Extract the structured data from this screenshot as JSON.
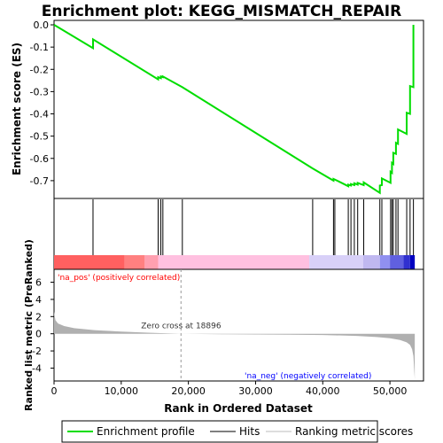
{
  "chart_data": {
    "type": "line",
    "title": "Enrichment plot: KEGG_MISMATCH_REPAIR",
    "es_panel": {
      "ylabel": "Enrichment score (ES)",
      "ylim": [
        -0.78,
        0.02
      ],
      "yticks": [
        "0.0",
        "-0.1",
        "-0.2",
        "-0.3",
        "-0.4",
        "-0.5",
        "-0.6",
        "-0.7"
      ],
      "ytick_values": [
        0.0,
        -0.1,
        -0.2,
        -0.3,
        -0.4,
        -0.5,
        -0.6,
        -0.7
      ],
      "series": [
        {
          "name": "Enrichment profile",
          "color": "#00dd00",
          "x": [
            0,
            5800,
            5800,
            15500,
            15500,
            15900,
            15900,
            16200,
            16200,
            19100,
            19100,
            38500,
            38500,
            41600,
            41600,
            41800,
            41800,
            43800,
            43800,
            44200,
            44200,
            44700,
            44700,
            45200,
            45200,
            46100,
            46100,
            48500,
            48500,
            48800,
            48800,
            50100,
            50100,
            50300,
            50300,
            50500,
            50500,
            50900,
            50900,
            51200,
            51200,
            52500,
            52500,
            53000,
            53000,
            53500,
            53500
          ],
          "y": [
            0.0,
            -0.105,
            -0.065,
            -0.245,
            -0.235,
            -0.24,
            -0.232,
            -0.235,
            -0.232,
            -0.28,
            -0.28,
            -0.645,
            -0.645,
            -0.7,
            -0.692,
            -0.695,
            -0.695,
            -0.725,
            -0.718,
            -0.722,
            -0.715,
            -0.72,
            -0.712,
            -0.718,
            -0.71,
            -0.72,
            -0.708,
            -0.755,
            -0.722,
            -0.72,
            -0.69,
            -0.71,
            -0.66,
            -0.665,
            -0.62,
            -0.625,
            -0.575,
            -0.58,
            -0.53,
            -0.535,
            -0.47,
            -0.49,
            -0.395,
            -0.4,
            -0.275,
            -0.28,
            0.0
          ]
        }
      ]
    },
    "hits_panel": {
      "hit_positions": [
        5800,
        15500,
        15900,
        16200,
        19100,
        38500,
        41600,
        41800,
        43800,
        44200,
        44700,
        45200,
        46100,
        48500,
        48800,
        50100,
        50300,
        50500,
        50900,
        51200,
        52500,
        53000,
        53500
      ]
    },
    "metric_panel": {
      "ylabel": "Ranked list metric (PreRanked)",
      "ylim": [
        -5.5,
        7.5
      ],
      "yticks": [
        "6",
        "4",
        "2",
        "0",
        "-2",
        "-4"
      ],
      "ytick_values": [
        6,
        4,
        2,
        0,
        -2,
        -4
      ],
      "zero_cross_label": "Zero cross at 18896",
      "zero_cross": 18896,
      "pos_label": "'na_pos' (positively correlated)",
      "neg_label": "'na_neg' (negatively correlated)",
      "curve_x": [
        0,
        200,
        600,
        1500,
        3000,
        6000,
        10000,
        14000,
        18896,
        25000,
        35000,
        40000,
        45000,
        48000,
        50000,
        51500,
        52500,
        53000,
        53300,
        53500,
        53700
      ],
      "curve_y": [
        2.6,
        1.6,
        1.2,
        0.9,
        0.65,
        0.42,
        0.25,
        0.12,
        0.0,
        -0.05,
        -0.1,
        -0.15,
        -0.25,
        -0.38,
        -0.52,
        -0.72,
        -1.0,
        -1.3,
        -1.8,
        -2.6,
        -5.3
      ]
    },
    "x_axis": {
      "xlabel": "Rank in Ordered Dataset",
      "xlim": [
        0,
        55000
      ],
      "xticks": [
        "0",
        "10,000",
        "20,000",
        "30,000",
        "40,000",
        "50,000"
      ],
      "xtick_values": [
        0,
        10000,
        20000,
        30000,
        40000,
        50000
      ]
    },
    "legend": {
      "placement": "bottom",
      "entries": [
        "Enrichment profile",
        "Hits",
        "Ranking metric scores"
      ]
    }
  },
  "colors": {
    "es_line": "#00dd00",
    "hits": "#000000",
    "pos_label": "#ff0000",
    "neg_label": "#0000ff",
    "metric_fill": "#b0b0b0",
    "zero_cross_text": "#333333"
  }
}
